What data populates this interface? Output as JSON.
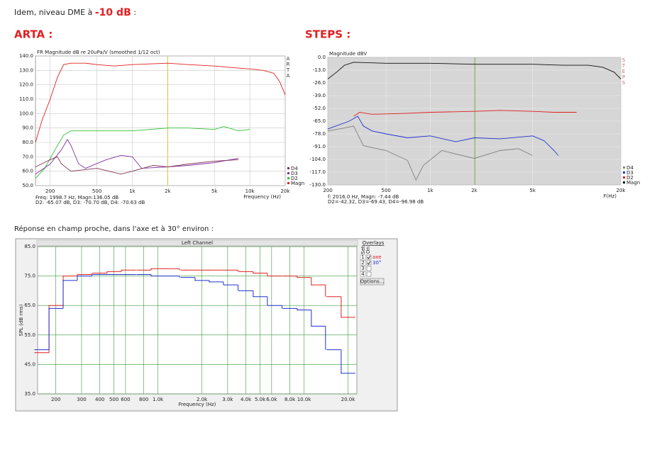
{
  "page": {
    "intro_text": "Idem, niveau DME à ",
    "intro_value": "-10 dB",
    "intro_end": " :",
    "arta_heading": "ARTA :",
    "steps_heading": "STEPS :",
    "near_field_text": "Réponse en champ proche, dans l'axe et à 30° environ :"
  },
  "chart_data": [
    {
      "type": "line",
      "title": "FR Magnitude dB re 20uPa/V (smoothed 1/12 oct)",
      "side_label": "ARTA",
      "x_label": "Frequency (Hz)",
      "annotations": [
        "Freq: 1998.7 Hz, Magn:136.05 dB",
        "D2: -65.07 dB, D3: -70.70 dB, D4: -70.63 dB"
      ],
      "cursor": 1998.7,
      "cursor_color": "#c8c850",
      "x_scale": "log",
      "xlim": [
        150,
        20000
      ],
      "xticks": [
        200,
        500,
        {
          "value": 1000,
          "label": "1k"
        },
        {
          "value": 2000,
          "label": "2k"
        },
        {
          "value": 5000,
          "label": "5k"
        },
        {
          "value": 10000,
          "label": "10k"
        },
        {
          "value": 20000,
          "label": "20k"
        }
      ],
      "ylim": [
        50,
        140
      ],
      "yticks": [
        {
          "value": 50,
          "label": "50.0"
        },
        {
          "value": 60,
          "label": "60.0"
        },
        {
          "value": 70,
          "label": "70.0"
        },
        {
          "value": 80,
          "label": "80.0"
        },
        {
          "value": 90,
          "label": "90.0"
        },
        {
          "value": 100,
          "label": "100.0"
        },
        {
          "value": 110,
          "label": "110.0"
        },
        {
          "value": 120,
          "label": "120.0"
        },
        {
          "value": 130,
          "label": "130.0"
        },
        {
          "value": 140,
          "label": "140.0"
        }
      ],
      "grid": true,
      "plot_background": "#ffffff",
      "grid_color": "#c8c8c8",
      "legend_position": "bottom-right",
      "series": [
        {
          "name": "Magn",
          "color": "#e02020",
          "x": [
            150,
            170,
            200,
            230,
            260,
            300,
            400,
            500,
            700,
            1000,
            2000,
            3000,
            5000,
            7000,
            10000,
            13000,
            16000,
            18000,
            20000
          ],
          "values": [
            80,
            95,
            110,
            125,
            134,
            135,
            135,
            134,
            133,
            134,
            135,
            134,
            133,
            132,
            131,
            130,
            128,
            122,
            113
          ]
        },
        {
          "name": "D2",
          "color": "#30c030",
          "x": [
            150,
            180,
            220,
            260,
            300,
            500,
            1000,
            2000,
            3000,
            5000,
            6000,
            8000,
            10000
          ],
          "values": [
            55,
            62,
            75,
            85,
            88,
            88,
            88,
            90,
            90,
            89,
            91,
            88,
            89
          ]
        },
        {
          "name": "D3",
          "color": "#8030a0",
          "x": [
            150,
            200,
            250,
            280,
            300,
            350,
            400,
            600,
            800,
            1000,
            1200,
            2000,
            3000,
            5000,
            8000
          ],
          "values": [
            58,
            65,
            75,
            82,
            78,
            65,
            62,
            68,
            71,
            70,
            62,
            63,
            64,
            66,
            69
          ]
        },
        {
          "name": "D4",
          "color": "#803050",
          "x": [
            150,
            200,
            230,
            250,
            300,
            500,
            800,
            1000,
            1500,
            2000,
            3000,
            5000,
            8000
          ],
          "values": [
            63,
            68,
            70,
            65,
            60,
            62,
            58,
            60,
            64,
            63,
            65,
            67,
            68
          ]
        }
      ]
    },
    {
      "type": "line",
      "title": "Magnitude dBV",
      "side_label": "STEPS",
      "x_label": "F(Hz)",
      "annotations": [
        "f: 2016.0 Hz, Magn: -7.44 dB",
        "D2=-42.32, D3=-69.43, D4=-96.98 dB"
      ],
      "cursor": 2016.0,
      "cursor_color": "#70a040",
      "x_scale": "log",
      "xlim": [
        200,
        20000
      ],
      "xticks": [
        200,
        500,
        {
          "value": 1000,
          "label": "1k"
        },
        {
          "value": 2000,
          "label": "2k"
        },
        {
          "value": 5000,
          "label": "5k"
        },
        {
          "value": 20000,
          "label": "20k"
        }
      ],
      "ylim": [
        -130,
        0
      ],
      "yticks": [
        {
          "value": 0,
          "label": "0.0"
        },
        {
          "value": -13,
          "label": "-13.0"
        },
        {
          "value": -26,
          "label": "-26.0"
        },
        {
          "value": -39,
          "label": "-39.0"
        },
        {
          "value": -52,
          "label": "-52.0"
        },
        {
          "value": -65,
          "label": "-65.0"
        },
        {
          "value": -78,
          "label": "-78.0"
        },
        {
          "value": -91,
          "label": "-91.0"
        },
        {
          "value": -104,
          "label": "-104.0"
        },
        {
          "value": -117,
          "label": "-117.0"
        },
        {
          "value": -130,
          "label": "-130.0"
        }
      ],
      "grid": true,
      "plot_background": "#d6d6d6",
      "grid_color": "#ececec",
      "legend_position": "bottom-right",
      "series": [
        {
          "name": "Magn",
          "color": "#111111",
          "x": [
            200,
            230,
            260,
            300,
            500,
            1000,
            2000,
            5000,
            8000,
            12000,
            15000,
            18000,
            20000
          ],
          "values": [
            -22,
            -15,
            -8,
            -5,
            -6,
            -6,
            -7,
            -7,
            -8,
            -8,
            -10,
            -15,
            -22
          ]
        },
        {
          "name": "D2",
          "color": "#e02020",
          "x": [
            300,
            330,
            400,
            700,
            1000,
            2000,
            3000,
            5000,
            7000,
            10000
          ],
          "values": [
            -60,
            -56,
            -58,
            -57,
            -56,
            -55,
            -54,
            -55,
            -56,
            -56
          ]
        },
        {
          "name": "D3",
          "color": "#2030d0",
          "x": [
            200,
            280,
            320,
            350,
            400,
            500,
            700,
            1000,
            1500,
            2000,
            3000,
            5000,
            6000,
            7000,
            7500
          ],
          "values": [
            -73,
            -65,
            -60,
            -70,
            -75,
            -78,
            -82,
            -80,
            -86,
            -82,
            -83,
            -80,
            -85,
            -95,
            -100
          ]
        },
        {
          "name": "D4",
          "color": "#808080",
          "x": [
            200,
            260,
            300,
            350,
            500,
            700,
            800,
            900,
            1200,
            2000,
            3000,
            4000,
            5000
          ],
          "values": [
            -75,
            -72,
            -70,
            -90,
            -95,
            -105,
            -125,
            -110,
            -95,
            -103,
            -95,
            -93,
            -100
          ]
        }
      ]
    },
    {
      "type": "step",
      "title": "Left Channel",
      "y_label": "SPL (dB rms)",
      "x_label": "Frequency (Hz)",
      "x_scale": "log",
      "xlim": [
        150,
        23000
      ],
      "xticks": [
        200,
        300,
        400,
        500,
        600,
        800,
        {
          "value": 1000,
          "label": "1.0k"
        },
        {
          "value": 2000,
          "label": "2.0k"
        },
        {
          "value": 3000,
          "label": "3.0k"
        },
        {
          "value": 4000,
          "label": "4.0k"
        },
        {
          "value": 5000,
          "label": "5.0k"
        },
        {
          "value": 6000,
          "label": "6.0k"
        },
        {
          "value": 8000,
          "label": "8.0k"
        },
        {
          "value": 10000,
          "label": "10.0k"
        },
        {
          "value": 20000,
          "label": "20.0k"
        }
      ],
      "ylim": [
        35,
        85
      ],
      "yticks": [
        {
          "value": 35,
          "label": "35.0"
        },
        {
          "value": 45,
          "label": "45.0"
        },
        {
          "value": 55,
          "label": "55.0"
        },
        {
          "value": 65,
          "label": "65.0"
        },
        {
          "value": 75,
          "label": "75.0"
        },
        {
          "value": 85,
          "label": "85.0"
        }
      ],
      "grid": true,
      "plot_background": "#ffffff",
      "grid_color": "#3a9a3a",
      "overlay_panel": {
        "title": "Overlays",
        "set_label": "Set",
        "on_label": "On",
        "sets": [
          "1",
          "2",
          "3",
          "4"
        ],
        "button": "Options..."
      },
      "series": [
        {
          "name": "axe",
          "color": "#e02020",
          "x": [
            160,
            200,
            250,
            315,
            400,
            500,
            630,
            800,
            1000,
            1250,
            1600,
            2000,
            2500,
            3150,
            4000,
            5000,
            6300,
            8000,
            10000,
            12500,
            16000,
            20000
          ],
          "values": [
            49,
            65,
            75,
            75.5,
            76,
            76.5,
            77,
            77,
            77.5,
            77.5,
            77,
            77,
            77,
            77,
            76.5,
            76,
            75,
            75,
            74.5,
            72,
            68,
            61
          ]
        },
        {
          "name": "30°",
          "color": "#2030d0",
          "x": [
            160,
            200,
            250,
            315,
            400,
            500,
            630,
            800,
            1000,
            1250,
            1600,
            2000,
            2500,
            3150,
            4000,
            5000,
            6300,
            8000,
            10000,
            12500,
            16000,
            20000
          ],
          "values": [
            50,
            64,
            73.5,
            75,
            75.5,
            75.5,
            75.5,
            75.5,
            75,
            75,
            74.5,
            73.5,
            73,
            72,
            70,
            68,
            65,
            64,
            63.5,
            58,
            50,
            42
          ]
        }
      ]
    }
  ]
}
